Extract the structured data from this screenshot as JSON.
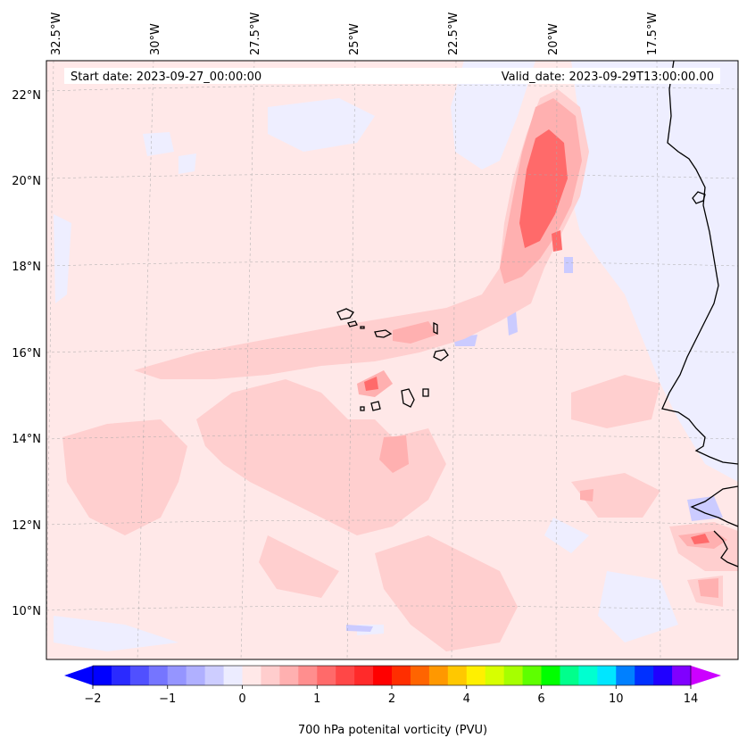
{
  "map": {
    "start_date": "Start date: 2023-09-27_00:00:00",
    "valid_date": "Valid_date: 2023-09-29T13:00:00.00",
    "lon_labels": [
      "32.5°W",
      "30°W",
      "27.5°W",
      "25°W",
      "22.5°W",
      "20°W",
      "17.5°W"
    ],
    "lat_labels": [
      "22°N",
      "20°N",
      "18°N",
      "16°N",
      "14°N",
      "12°N",
      "10°N"
    ],
    "extent": {
      "lon_min": -32.8,
      "lon_max": -15.4,
      "lat_min": 8.9,
      "lat_max": 22.8
    },
    "field": "700 hPa potential vorticity",
    "colors": {
      "negative_weak": "#eeeeff",
      "negative_mid": "#cbcbff",
      "positive_weak": "#ffe6e6",
      "positive_low": "#ffcfcf",
      "positive_mid": "#ffb0b0",
      "positive_high": "#ff6a6a",
      "coastline": "#000000"
    }
  },
  "colorbar": {
    "label": "700 hPa potenital vorticity (PVU)",
    "ticks": [
      "−2",
      "−1",
      "0",
      "1",
      "2",
      "4",
      "6",
      "10",
      "14"
    ],
    "colors": [
      "#0000ff",
      "#2a2aff",
      "#5050ff",
      "#7575ff",
      "#9595ff",
      "#b0b0ff",
      "#cdcdff",
      "#ececff",
      "#ffe8e8",
      "#ffcdcd",
      "#ffb0b0",
      "#ff8e8e",
      "#ff6a6a",
      "#ff4747",
      "#ff2a2a",
      "#ff0000",
      "#ff2e00",
      "#ff6400",
      "#ff9800",
      "#ffc800",
      "#fff000",
      "#d7ff00",
      "#a6ff00",
      "#5eff00",
      "#00ff00",
      "#00ff8c",
      "#00ffd0",
      "#00e6ff",
      "#0080ff",
      "#0030ff",
      "#2000ff",
      "#8000ff"
    ],
    "extend_low_color": "#0000ff",
    "extend_high_color": "#cc00ff"
  }
}
